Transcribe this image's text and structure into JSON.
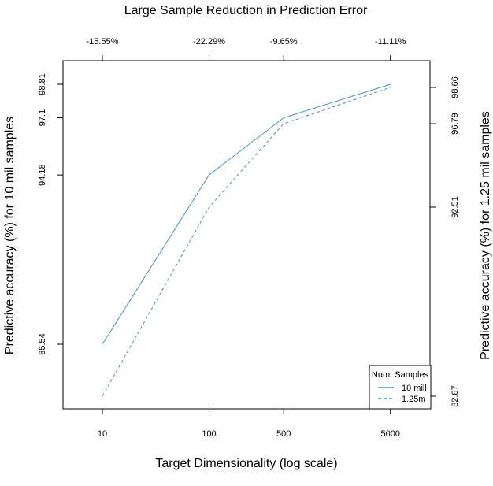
{
  "chart_data": {
    "type": "line",
    "title": "Large Sample Reduction in Prediction Error",
    "xlabel": "Target Dimensionality (log scale)",
    "x_scale": "log",
    "x": [
      10,
      100,
      500,
      5000
    ],
    "x_tick_labels": [
      "10",
      "100",
      "500",
      "5000"
    ],
    "top_axis_labels": [
      "-15.55%",
      "-22.29%",
      "-9.65%",
      "-11.11%"
    ],
    "series": [
      {
        "name": "10 mill",
        "values": [
          85.54,
          94.18,
          97.1,
          98.81
        ],
        "axis": "left",
        "line_style": "solid",
        "color": "#4a90c8"
      },
      {
        "name": "1.25m",
        "values": [
          82.87,
          92.51,
          96.79,
          98.66
        ],
        "axis": "right",
        "line_style": "dashed",
        "color": "#4a90c8"
      }
    ],
    "y_left": {
      "label": "Predictive accuracy (%) for 10 mil samples",
      "ticks": [
        85.54,
        94.18,
        97.1,
        98.81
      ],
      "tick_labels": [
        "85.54",
        "94.18",
        "97.1",
        "98.81"
      ]
    },
    "y_right": {
      "label": "Predictive accuracy (%) for 1.25 mil samples",
      "ticks": [
        82.87,
        92.51,
        96.79,
        98.66
      ],
      "tick_labels": [
        "82.87",
        "92.51",
        "96.79",
        "98.66"
      ]
    },
    "legend": {
      "title": "Num. Samples",
      "position": "bottom-right",
      "entries": [
        "10 mill",
        "1.25m"
      ]
    },
    "grid": false
  }
}
